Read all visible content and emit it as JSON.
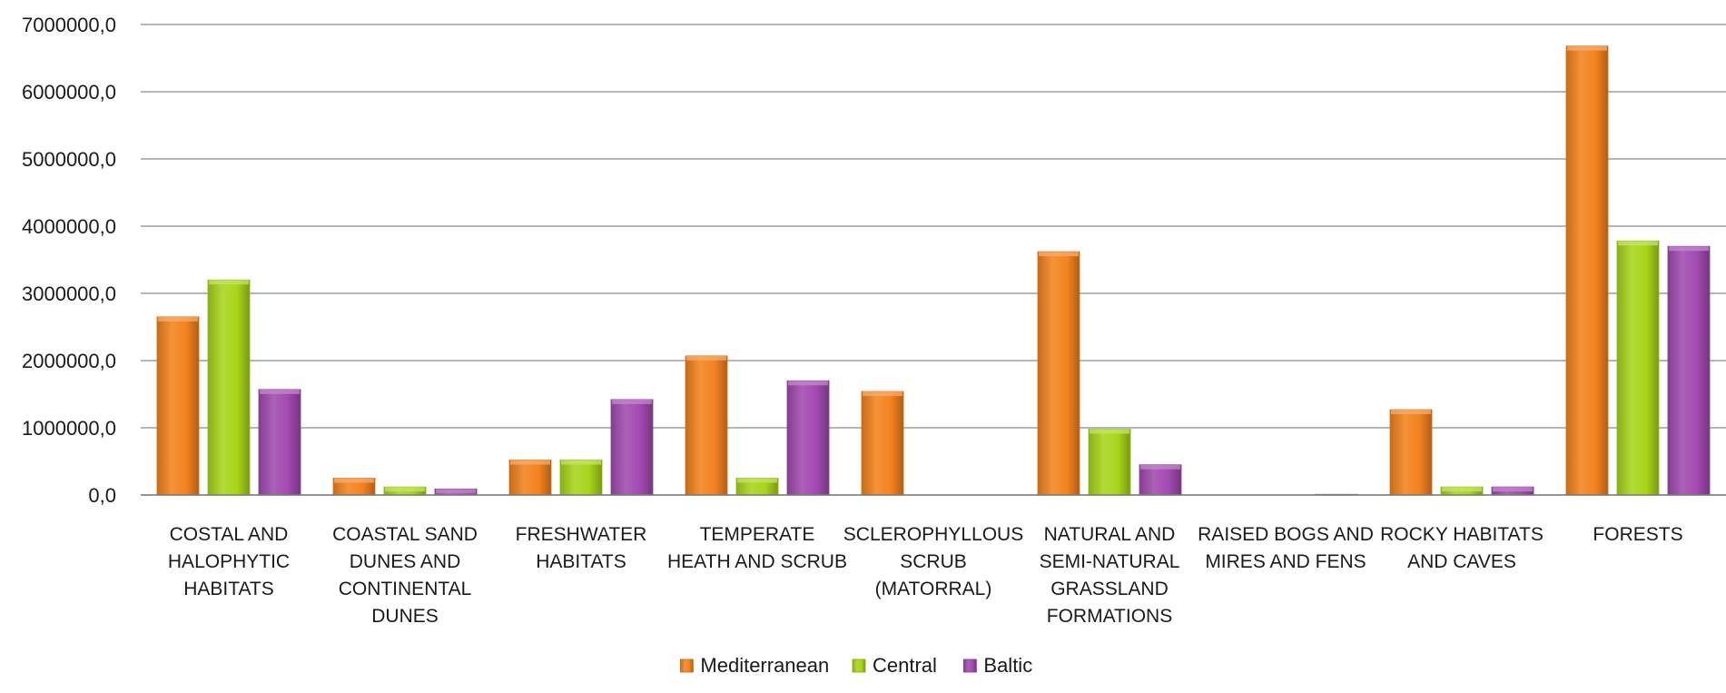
{
  "chart_data": {
    "type": "bar",
    "title": "",
    "xlabel": "",
    "ylabel": "",
    "ylim": [
      0,
      7000000
    ],
    "yticks": [
      0,
      1000000,
      2000000,
      3000000,
      4000000,
      5000000,
      6000000,
      7000000
    ],
    "ytick_labels": [
      "0,0",
      "1000000,0",
      "2000000,0",
      "3000000,0",
      "4000000,0",
      "5000000,0",
      "6000000,0",
      "7000000,0"
    ],
    "grid": true,
    "legend_position": "bottom",
    "categories": [
      [
        "COSTAL AND",
        "HALOPHYTIC",
        "HABITATS"
      ],
      [
        "COASTAL SAND",
        "DUNES AND",
        "CONTINENTAL",
        "DUNES"
      ],
      [
        "FRESHWATER",
        "HABITATS"
      ],
      [
        "TEMPERATE",
        "HEATH AND SCRUB"
      ],
      [
        "SCLEROPHYLLOUS",
        "SCRUB",
        "(MATORRAL)"
      ],
      [
        "NATURAL AND",
        "SEMI-NATURAL",
        "GRASSLAND",
        "FORMATIONS"
      ],
      [
        "RAISED BOGS AND",
        "MIRES AND FENS"
      ],
      [
        "ROCKY HABITATS",
        "AND CAVES"
      ],
      [
        "FORESTS"
      ]
    ],
    "series": [
      {
        "name": "Mediterranean",
        "color": "#f4831f",
        "values": [
          2650000,
          250000,
          520000,
          2070000,
          1540000,
          3620000,
          0,
          1270000,
          6680000
        ]
      },
      {
        "name": "Central",
        "color": "#a8d51a",
        "values": [
          3200000,
          120000,
          520000,
          250000,
          0,
          980000,
          0,
          120000,
          3780000
        ]
      },
      {
        "name": "Baltic",
        "color": "#a24ab0",
        "values": [
          1570000,
          90000,
          1420000,
          1700000,
          0,
          450000,
          10000,
          120000,
          3700000
        ]
      }
    ]
  }
}
